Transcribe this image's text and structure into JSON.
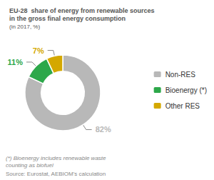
{
  "chart_data": {
    "type": "pie",
    "title": "EU-28  share of energy from renewable sources\nin the gross final energy consumption",
    "subtitle": "(in 2017, %)",
    "categories": [
      "Non-RES",
      "Bioenergy (*)",
      "Other RES"
    ],
    "values": [
      82,
      11,
      7
    ],
    "value_labels": [
      "82%",
      "11%",
      "7%"
    ],
    "data_labels": true,
    "colors": [
      "#b8b8b8",
      "#2da84a",
      "#d4a800"
    ],
    "legend": "right",
    "annotations": [
      "(*) Bioenergy includes renewable waste\ncounting as biofuel",
      "Source: Eurostat, AEBIOM's calculation"
    ]
  }
}
